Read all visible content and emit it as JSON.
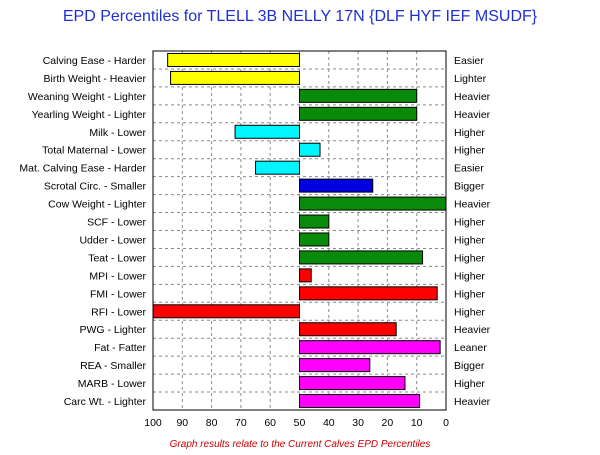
{
  "colors": {
    "yellow": "#ffff00",
    "green": "#0a8a0a",
    "cyan": "#00f5ff",
    "blue": "#0000e0",
    "red": "#ff0000",
    "magenta": "#ff00ff",
    "title": "#1f2fd0",
    "note": "#cc0000"
  },
  "chart_data": {
    "type": "bar",
    "orientation": "horizontal",
    "title": "EPD Percentiles for TLELL 3B NELLY 17N {DLF HYF IEF MSUDF}",
    "footnote": "Graph results relate to the Current Calves EPD Percentiles",
    "xlim": [
      100,
      0
    ],
    "baseline": 50,
    "xticks": [
      100,
      90,
      80,
      70,
      60,
      50,
      40,
      30,
      20,
      10,
      0
    ],
    "grid": true,
    "rows": [
      {
        "label": "Calving Ease - Harder",
        "right_label": "Easier",
        "value": 95,
        "color": "yellow"
      },
      {
        "label": "Birth Weight - Heavier",
        "right_label": "Lighter",
        "value": 94,
        "color": "yellow"
      },
      {
        "label": "Weaning Weight - Lighter",
        "right_label": "Heavier",
        "value": 10,
        "color": "green"
      },
      {
        "label": "Yearling Weight - Lighter",
        "right_label": "Heavier",
        "value": 10,
        "color": "green"
      },
      {
        "label": "Milk - Lower",
        "right_label": "Higher",
        "value": 72,
        "color": "cyan"
      },
      {
        "label": "Total Maternal - Lower",
        "right_label": "Higher",
        "value": 43,
        "color": "cyan"
      },
      {
        "label": "Mat. Calving Ease - Harder",
        "right_label": "Easier",
        "value": 65,
        "color": "cyan"
      },
      {
        "label": "Scrotal Circ. - Smaller",
        "right_label": "Bigger",
        "value": 25,
        "color": "blue"
      },
      {
        "label": "Cow Weight - Lighter",
        "right_label": "Heavier",
        "value": 0,
        "color": "green"
      },
      {
        "label": "SCF - Lower",
        "right_label": "Higher",
        "value": 40,
        "color": "green"
      },
      {
        "label": "Udder - Lower",
        "right_label": "Higher",
        "value": 40,
        "color": "green"
      },
      {
        "label": "Teat - Lower",
        "right_label": "Higher",
        "value": 8,
        "color": "green"
      },
      {
        "label": "MPI - Lower",
        "right_label": "Higher",
        "value": 46,
        "color": "red"
      },
      {
        "label": "FMI - Lower",
        "right_label": "Higher",
        "value": 3,
        "color": "red"
      },
      {
        "label": "RFI - Lower",
        "right_label": "Higher",
        "value": 100,
        "color": "red"
      },
      {
        "label": "PWG - Lighter",
        "right_label": "Heavier",
        "value": 17,
        "color": "red"
      },
      {
        "label": "Fat - Fatter",
        "right_label": "Leaner",
        "value": 2,
        "color": "magenta"
      },
      {
        "label": "REA - Smaller",
        "right_label": "Bigger",
        "value": 26,
        "color": "magenta"
      },
      {
        "label": "MARB - Lower",
        "right_label": "Higher",
        "value": 14,
        "color": "magenta"
      },
      {
        "label": "Carc Wt. - Lighter",
        "right_label": "Heavier",
        "value": 9,
        "color": "magenta"
      }
    ]
  }
}
